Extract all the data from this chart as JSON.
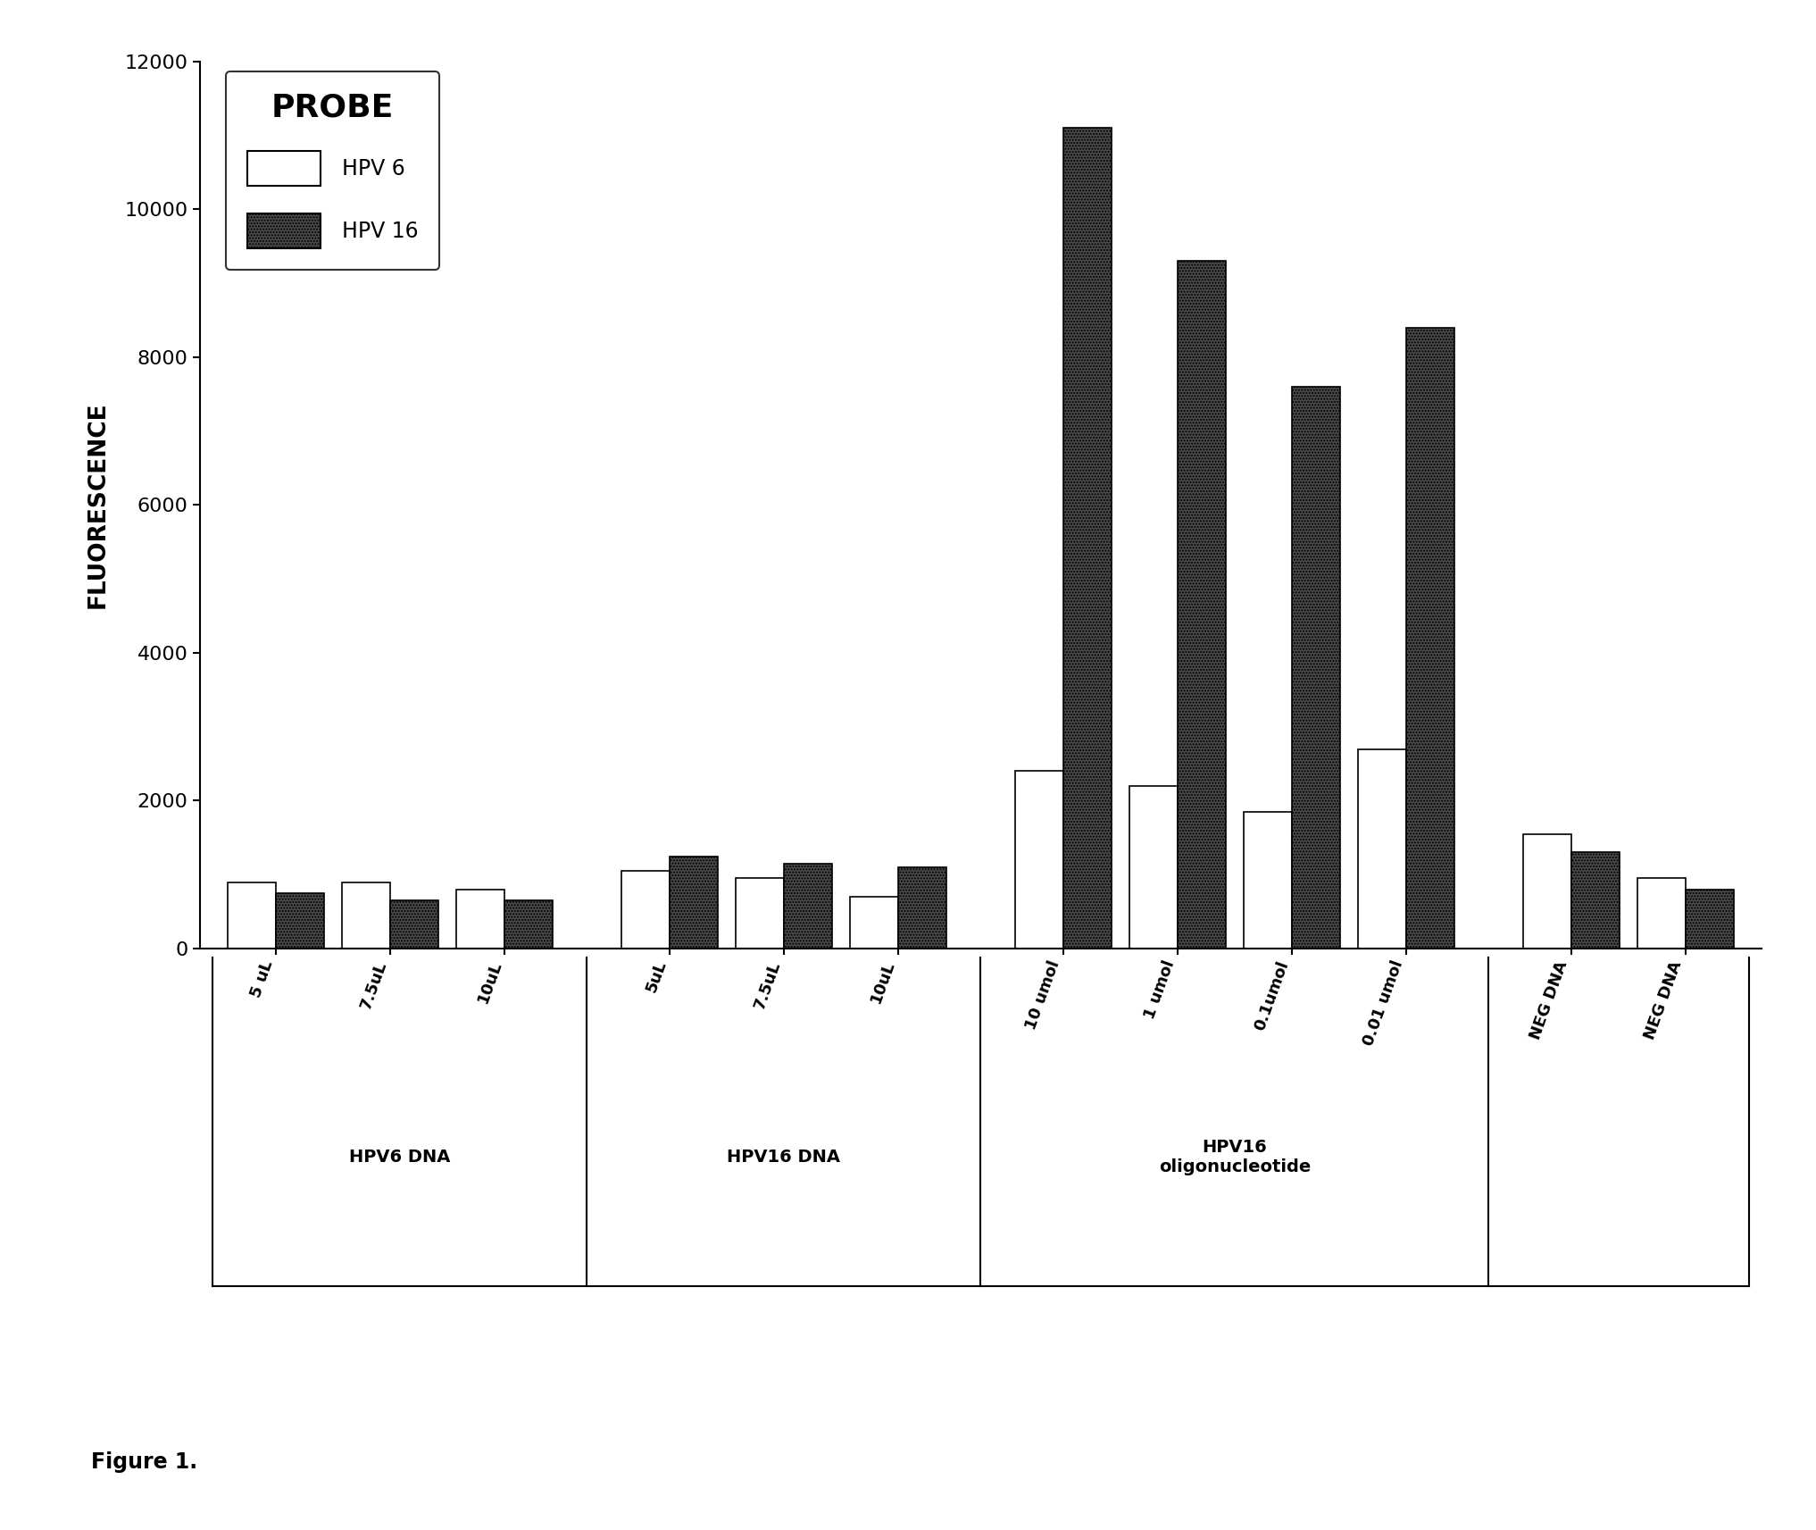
{
  "groups": [
    {
      "label": "5 uL",
      "section": 0,
      "hpv6": 900,
      "hpv16": 750
    },
    {
      "label": "7.5uL",
      "section": 0,
      "hpv6": 900,
      "hpv16": 650
    },
    {
      "label": "10uL",
      "section": 0,
      "hpv6": 800,
      "hpv16": 650
    },
    {
      "label": "5uL",
      "section": 1,
      "hpv6": 1050,
      "hpv16": 1250
    },
    {
      "label": "7.5uL",
      "section": 1,
      "hpv6": 950,
      "hpv16": 1150
    },
    {
      "label": "10uL",
      "section": 1,
      "hpv6": 700,
      "hpv16": 1100
    },
    {
      "label": "10 umol",
      "section": 2,
      "hpv6": 2400,
      "hpv16": 11100
    },
    {
      "label": "1 umol",
      "section": 2,
      "hpv6": 2200,
      "hpv16": 9300
    },
    {
      "label": "0.1umol",
      "section": 2,
      "hpv6": 1850,
      "hpv16": 7600
    },
    {
      "label": "0.01 umol",
      "section": 2,
      "hpv6": 2700,
      "hpv16": 8400
    },
    {
      "label": "NEG DNA",
      "section": 3,
      "hpv6": 1550,
      "hpv16": 1300
    },
    {
      "label": "NEG DNA",
      "section": 3,
      "hpv6": 950,
      "hpv16": 800
    }
  ],
  "sections": [
    {
      "indices": [
        0,
        1,
        2
      ],
      "label": "HPV6 DNA"
    },
    {
      "indices": [
        3,
        4,
        5
      ],
      "label": "HPV16 DNA"
    },
    {
      "indices": [
        6,
        7,
        8,
        9
      ],
      "label": "HPV16\noligonucleotide"
    },
    {
      "indices": [
        10,
        11
      ],
      "label": ""
    }
  ],
  "divider_after": [
    2,
    5,
    9
  ],
  "ylim": [
    0,
    12000
  ],
  "yticks": [
    0,
    2000,
    4000,
    6000,
    8000,
    10000,
    12000
  ],
  "ylabel": "FLUORESCENCE",
  "color_hpv6": "#ffffff",
  "color_hpv16": "#4a4a4a",
  "bar_edgecolor": "#000000",
  "bar_width": 0.38,
  "background_color": "#ffffff",
  "legend_title": "PROBE",
  "legend_label_hpv6": "HPV 6",
  "legend_label_hpv16": "HPV 16",
  "figure_caption": "Figure 1.",
  "hatch_hpv16": "....."
}
